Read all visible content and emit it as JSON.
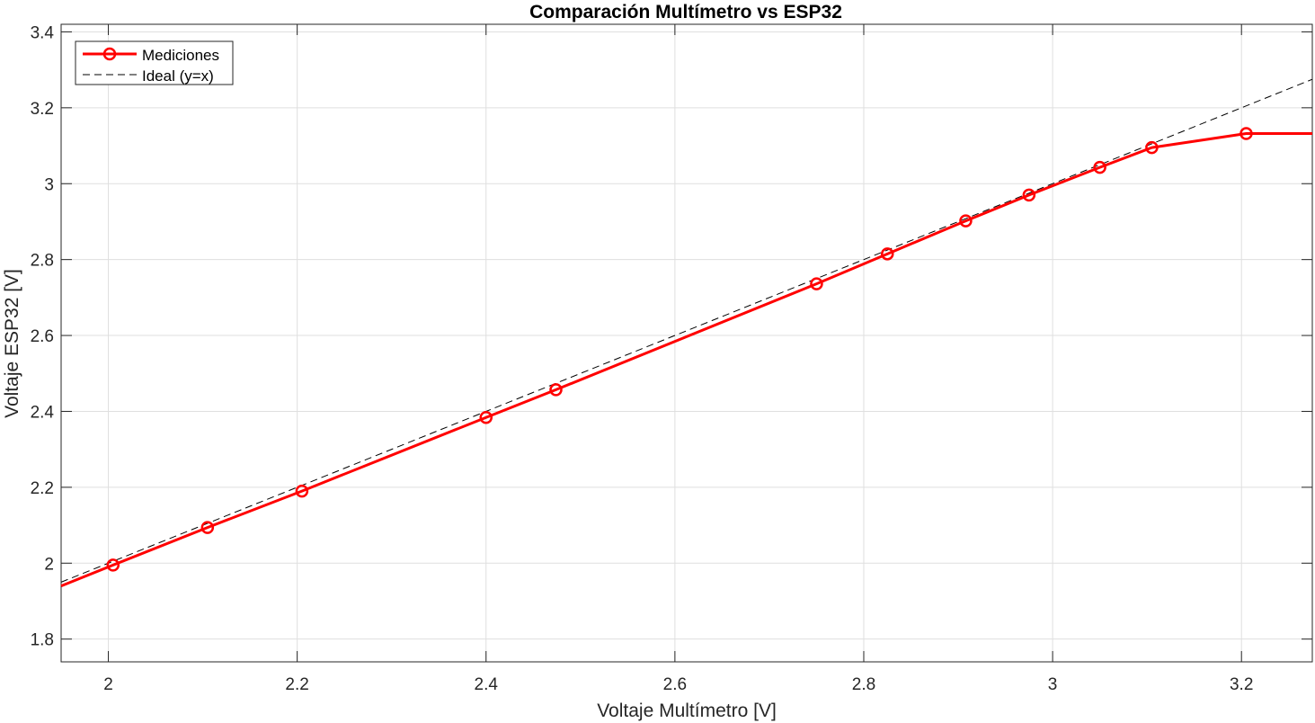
{
  "chart_data": {
    "type": "line",
    "title": "Comparación Multímetro vs ESP32",
    "xlabel": "Voltaje Multímetro [V]",
    "ylabel": "Voltaje ESP32 [V]",
    "xlim": [
      1.95,
      3.275
    ],
    "ylim": [
      1.74,
      3.42
    ],
    "xticks": [
      2,
      2.2,
      2.4,
      2.6,
      2.8,
      3,
      3.2
    ],
    "xtick_labels": [
      "2",
      "2.2",
      "2.4",
      "2.6",
      "2.8",
      "3",
      "3.2"
    ],
    "yticks": [
      1.8,
      2,
      2.2,
      2.4,
      2.6,
      2.8,
      3,
      3.2,
      3.4
    ],
    "ytick_labels": [
      "1.8",
      "2",
      "2.2",
      "2.4",
      "2.6",
      "2.8",
      "3",
      "3.2",
      "3.4"
    ],
    "grid": true,
    "legend_position": "top-left",
    "series": [
      {
        "name": "Mediciones",
        "color": "#ff0000",
        "style": "solid",
        "marker": "circle",
        "x": [
          1.95,
          2.005,
          2.105,
          2.205,
          2.4,
          2.474,
          2.75,
          2.825,
          2.908,
          2.975,
          3.05,
          3.105,
          3.205,
          3.275
        ],
        "y": [
          1.94,
          1.995,
          2.094,
          2.19,
          2.384,
          2.457,
          2.736,
          2.815,
          2.902,
          2.97,
          3.043,
          3.095,
          3.132,
          3.132
        ],
        "marker_indices": [
          1,
          2,
          3,
          4,
          5,
          6,
          7,
          8,
          9,
          10,
          11,
          12
        ]
      },
      {
        "name": "Ideal (y=x)",
        "color": "#000000",
        "style": "dashed",
        "marker": "none",
        "x": [
          1.95,
          3.275
        ],
        "y": [
          1.95,
          3.275
        ]
      }
    ]
  }
}
